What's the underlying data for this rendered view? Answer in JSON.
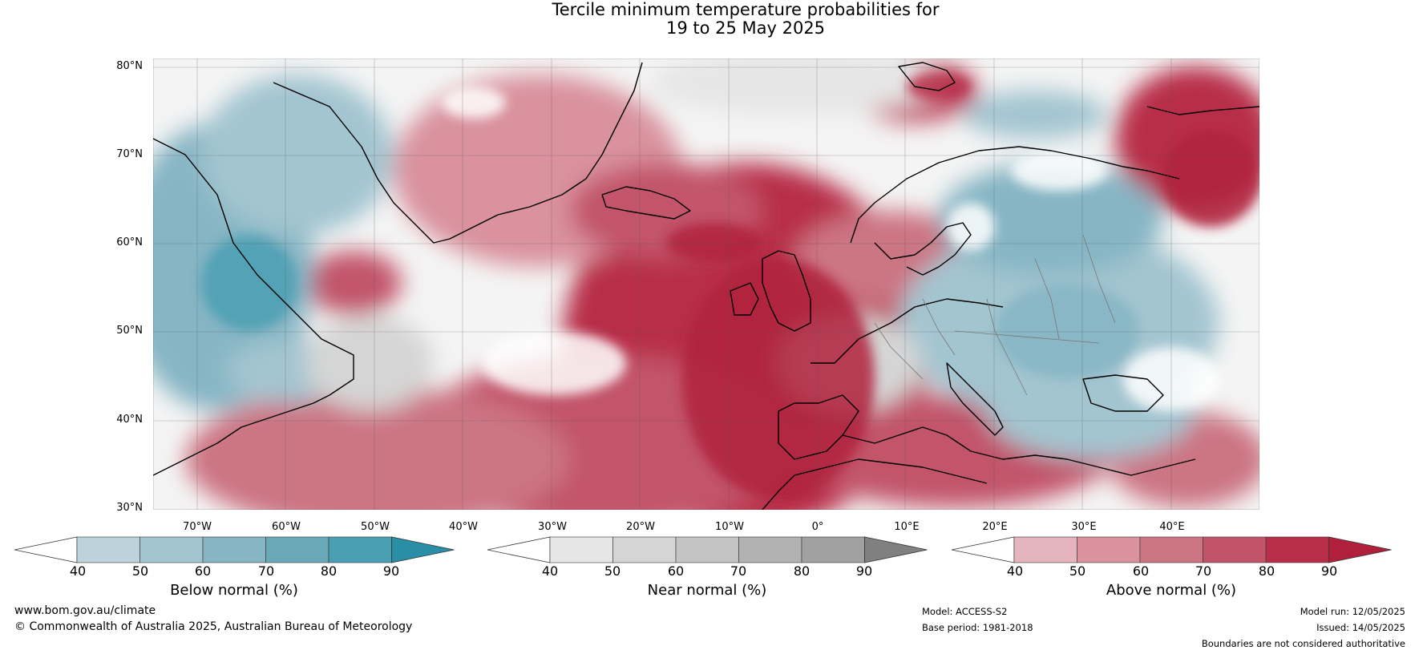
{
  "title": {
    "line1": "Tercile minimum temperature probabilities for",
    "line2": "19 to 25 May 2025"
  },
  "lat_labels": [
    "80°N",
    "70°N",
    "60°N",
    "50°N",
    "40°N",
    "30°N"
  ],
  "lon_labels": [
    "70°W",
    "60°W",
    "50°W",
    "40°W",
    "30°W",
    "20°W",
    "10°W",
    "0°",
    "10°E",
    "20°E",
    "30°E",
    "40°E"
  ],
  "map_extent": {
    "lon": [
      -80,
      45
    ],
    "lat": [
      30,
      80
    ]
  },
  "colorbars": [
    {
      "id": "below",
      "title": "Below normal (%)",
      "ticks": [
        "40",
        "50",
        "60",
        "70",
        "80",
        "90"
      ],
      "colors": [
        "#ffffff",
        "#bcd3dc",
        "#a3c5d0",
        "#86b5c4",
        "#6aa9b8",
        "#4b9fb3",
        "#2a8fa6"
      ]
    },
    {
      "id": "near",
      "title": "Near normal (%)",
      "ticks": [
        "40",
        "50",
        "60",
        "70",
        "80",
        "90"
      ],
      "colors": [
        "#ffffff",
        "#e6e6e6",
        "#d5d5d5",
        "#c4c4c4",
        "#b2b2b2",
        "#a1a1a1",
        "#808080"
      ]
    },
    {
      "id": "above",
      "title": "Above normal (%)",
      "ticks": [
        "40",
        "50",
        "60",
        "70",
        "80",
        "90"
      ],
      "colors": [
        "#ffffff",
        "#e4b5bd",
        "#d9929e",
        "#cc7583",
        "#c2546a",
        "#b82e48",
        "#b0203c"
      ]
    }
  ],
  "footer": {
    "website": "www.bom.gov.au/climate",
    "copyright": "© Commonwealth of Australia 2025, Australian Bureau of Meteorology",
    "model": "Model: ACCESS-S2",
    "base_period": "Base period: 1981-2018",
    "model_run": "Model run: 12/05/2025",
    "issued": "Issued: 14/05/2025",
    "disclaimer": "Boundaries are not considered authoritative"
  }
}
